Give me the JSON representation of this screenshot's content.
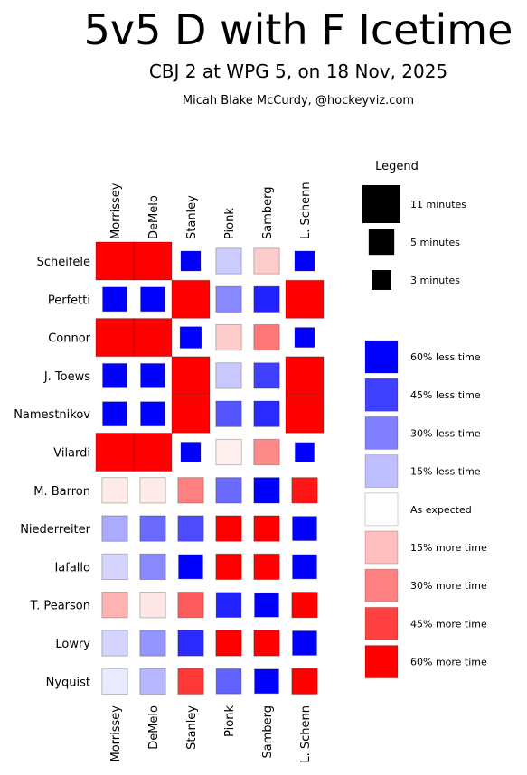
{
  "header": {
    "title": "5v5 D with F Icetime",
    "subtitle": "CBJ 2 at WPG 5, on 18 Nov, 2025",
    "byline": "Micah Blake McCurdy, @hockeyviz.com"
  },
  "chart_data": {
    "type": "heatmap",
    "defense": [
      "Morrissey",
      "DeMelo",
      "Stanley",
      "Pionk",
      "Samberg",
      "L. Schenn"
    ],
    "forwards": [
      "Scheifele",
      "Perfetti",
      "Connor",
      "J. Toews",
      "Namestnikov",
      "Vilardi",
      "M. Barron",
      "Niederreiter",
      "Iafallo",
      "T. Pearson",
      "Lowry",
      "Nyquist"
    ],
    "minutes": [
      [
        11,
        11,
        3,
        5,
        5,
        3
      ],
      [
        4.5,
        4.5,
        11,
        5,
        5,
        11
      ],
      [
        11,
        11,
        3.5,
        5,
        5,
        3
      ],
      [
        4.5,
        4.5,
        11,
        5,
        5,
        11
      ],
      [
        4.5,
        4.5,
        11,
        5,
        5,
        11
      ],
      [
        11,
        11,
        3,
        5,
        5,
        2.8
      ],
      [
        5,
        5,
        5,
        5,
        5,
        5
      ],
      [
        5,
        5,
        5,
        5,
        5,
        4.5
      ],
      [
        5,
        5,
        4.5,
        5,
        5,
        4.5
      ],
      [
        5,
        5,
        5,
        4.8,
        4.5,
        5
      ],
      [
        5,
        5,
        5,
        5,
        5,
        4.5
      ],
      [
        5,
        5,
        5,
        4.8,
        4.5,
        5
      ]
    ],
    "relative_time": [
      [
        0.85,
        0.95,
        -0.95,
        -0.12,
        0.12,
        -0.95
      ],
      [
        -0.95,
        -0.95,
        0.95,
        -0.28,
        -0.52,
        0.95
      ],
      [
        0.85,
        0.95,
        -0.95,
        0.12,
        0.32,
        -0.95
      ],
      [
        -0.95,
        -0.95,
        0.95,
        -0.13,
        -0.45,
        0.95
      ],
      [
        -0.85,
        -0.85,
        0.95,
        -0.4,
        -0.5,
        0.95
      ],
      [
        0.95,
        0.95,
        -0.95,
        0.04,
        0.28,
        -0.95
      ],
      [
        0.05,
        0.05,
        0.3,
        -0.35,
        -0.6,
        0.55
      ],
      [
        -0.2,
        -0.35,
        -0.42,
        0.85,
        0.95,
        -0.8
      ],
      [
        -0.1,
        -0.28,
        -0.65,
        0.75,
        0.95,
        -0.85
      ],
      [
        0.18,
        0.06,
        0.38,
        -0.52,
        -0.8,
        0.7
      ],
      [
        -0.1,
        -0.25,
        -0.5,
        0.6,
        0.95,
        -0.8
      ],
      [
        -0.05,
        -0.17,
        0.47,
        -0.37,
        -0.7,
        0.85
      ]
    ],
    "legend": {
      "title": "Legend",
      "size_entries": [
        {
          "label": "11 minutes",
          "minutes": 11
        },
        {
          "label": "5 minutes",
          "minutes": 5
        },
        {
          "label": "3 minutes",
          "minutes": 3
        }
      ],
      "color_entries": [
        {
          "label": "60% less time",
          "value": -0.6
        },
        {
          "label": "45% less time",
          "value": -0.45
        },
        {
          "label": "30% less time",
          "value": -0.3
        },
        {
          "label": "15% less time",
          "value": -0.15
        },
        {
          "label": "As expected",
          "value": 0
        },
        {
          "label": "15% more time",
          "value": 0.15
        },
        {
          "label": "30% more time",
          "value": 0.3
        },
        {
          "label": "45% more time",
          "value": 0.45
        },
        {
          "label": "60% more time",
          "value": 0.6
        }
      ]
    },
    "colors": {
      "less": "#0000ff",
      "more": "#ff0000",
      "neutral": "#ffffff"
    }
  }
}
